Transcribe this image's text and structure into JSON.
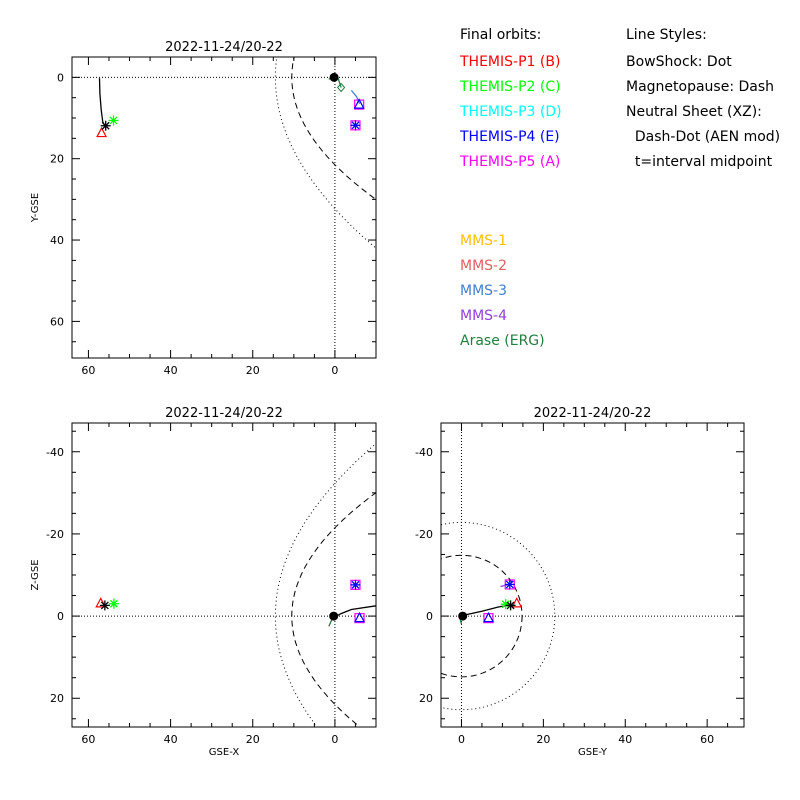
{
  "legend": {
    "final_orbits_title": "Final orbits:",
    "line_styles_title": "Line Styles:",
    "probes": [
      {
        "label": "THEMIS-P1 (B)",
        "color": "#ff0000"
      },
      {
        "label": "THEMIS-P2 (C)",
        "color": "#00ff00"
      },
      {
        "label": "THEMIS-P3 (D)",
        "color": "#00ffff"
      },
      {
        "label": "THEMIS-P4 (E)",
        "color": "#0000ff"
      },
      {
        "label": "THEMIS-P5 (A)",
        "color": "#ff00ff"
      }
    ],
    "mms": [
      {
        "label": "MMS-1",
        "color": "#ffc000"
      },
      {
        "label": "MMS-2",
        "color": "#e06060"
      },
      {
        "label": "MMS-3",
        "color": "#4080d0"
      },
      {
        "label": "MMS-4",
        "color": "#9040e0"
      },
      {
        "label": "Arase (ERG)",
        "color": "#208040"
      }
    ],
    "line_styles": [
      "BowShock: Dot",
      "Magnetopause: Dash",
      "Neutral Sheet (XZ):",
      "  Dash-Dot (AEN mod)",
      "  t=interval midpoint"
    ]
  },
  "chart_data": [
    {
      "type": "scatter",
      "title": "2022-11-24/20-22",
      "xlabel": "",
      "ylabel": "Y-GSE",
      "xlim": [
        64,
        -10
      ],
      "ylim": [
        -5,
        69
      ],
      "xticks": [
        60,
        40,
        20,
        0
      ],
      "yticks": [
        0,
        20,
        40,
        60
      ],
      "bowshock": {
        "kind": "xy",
        "x0": 14.5,
        "r": 36
      },
      "magnetopause": {
        "kind": "xy",
        "x0": 10.5,
        "r": 22
      },
      "markers": [
        {
          "x": 56.8,
          "y": 13.7,
          "symbol": "triangle",
          "color": "#ff0000"
        },
        {
          "x": 53.9,
          "y": 10.6,
          "symbol": "asterisk",
          "color": "#00ff00"
        },
        {
          "x": 55.8,
          "y": 11.9,
          "symbol": "asterisk",
          "color": "#000000"
        },
        {
          "x": -5.9,
          "y": 6.7,
          "symbol": "square",
          "color": "#ff00ff"
        },
        {
          "x": -5.9,
          "y": 6.7,
          "symbol": "triangle",
          "color": "#0000ff"
        },
        {
          "x": -5.0,
          "y": 11.8,
          "symbol": "square",
          "color": "#ff00ff"
        },
        {
          "x": -5.0,
          "y": 11.8,
          "symbol": "asterisk",
          "color": "#0000ff"
        },
        {
          "x": -1.5,
          "y": 2.5,
          "symbol": "diamond",
          "color": "#208040"
        },
        {
          "x": 0.2,
          "y": 0.0,
          "symbol": "circle",
          "color": "#000000"
        }
      ],
      "tracks": [
        {
          "color": "#000000",
          "points": [
            [
              57.3,
              0.2
            ],
            [
              57.2,
              4
            ],
            [
              56.9,
              8
            ],
            [
              56.5,
              11
            ],
            [
              55.8,
              12.3
            ]
          ]
        },
        {
          "color": "#4080d0",
          "points": [
            [
              -4.0,
              3.2
            ],
            [
              -5.3,
              4.8
            ],
            [
              -6.0,
              6.5
            ]
          ]
        },
        {
          "color": "#208040",
          "points": [
            [
              1.5,
              0.5
            ],
            [
              0.5,
              -0.3
            ],
            [
              -0.8,
              0.3
            ],
            [
              -1.5,
              2.5
            ]
          ]
        }
      ]
    },
    {
      "type": "scatter",
      "title": "2022-11-24/20-22",
      "xlabel": "GSE-X",
      "ylabel": "Z-GSE",
      "xlim": [
        64,
        -10
      ],
      "ylim": [
        -47,
        27
      ],
      "xticks": [
        60,
        40,
        20,
        0
      ],
      "yticks": [
        20,
        0,
        -20,
        -40
      ],
      "bowshock": {
        "kind": "xy",
        "x0": 14.5,
        "r": 36
      },
      "magnetopause": {
        "kind": "xy",
        "x0": 10.5,
        "r": 22
      },
      "markers": [
        {
          "x": 57.0,
          "y": -3.1,
          "symbol": "triangle",
          "color": "#ff0000"
        },
        {
          "x": 53.8,
          "y": -3.0,
          "symbol": "asterisk",
          "color": "#00ff00"
        },
        {
          "x": 56.0,
          "y": -2.6,
          "symbol": "asterisk",
          "color": "#000000"
        },
        {
          "x": -6.0,
          "y": 0.5,
          "symbol": "square",
          "color": "#ff00ff"
        },
        {
          "x": -6.0,
          "y": 0.5,
          "symbol": "triangle",
          "color": "#0000ff"
        },
        {
          "x": -5.0,
          "y": -7.6,
          "symbol": "square",
          "color": "#ff00ff"
        },
        {
          "x": -5.0,
          "y": -7.6,
          "symbol": "asterisk",
          "color": "#0000ff"
        },
        {
          "x": 0.3,
          "y": 0.0,
          "symbol": "circle",
          "color": "#000000"
        }
      ],
      "tracks": [
        {
          "color": "#000000",
          "points": [
            [
              0.5,
              0.5
            ],
            [
              -1.5,
              -0.6
            ],
            [
              -4,
              -1.6
            ],
            [
              -10,
              -2.5
            ]
          ]
        },
        {
          "color": "#208040",
          "points": [
            [
              1.5,
              2.5
            ],
            [
              0.8,
              1.0
            ],
            [
              0.2,
              0.0
            ]
          ]
        }
      ]
    },
    {
      "type": "scatter",
      "title": "2022-11-24/20-22",
      "xlabel": "GSE-Y",
      "ylabel": "",
      "xlim": [
        -5,
        69
      ],
      "ylim": [
        -47,
        27
      ],
      "xticks": [
        0,
        20,
        40,
        60
      ],
      "yticks": [
        20,
        0,
        -20,
        -40
      ],
      "bowshock": {
        "kind": "yz",
        "r": 22.8
      },
      "magnetopause": {
        "kind": "yz",
        "r": 14.8
      },
      "markers": [
        {
          "x": 13.5,
          "y": -3.1,
          "symbol": "triangle",
          "color": "#ff0000"
        },
        {
          "x": 10.8,
          "y": -2.9,
          "symbol": "asterisk",
          "color": "#00ff00"
        },
        {
          "x": 12.0,
          "y": -2.6,
          "symbol": "asterisk",
          "color": "#000000"
        },
        {
          "x": 6.6,
          "y": 0.5,
          "symbol": "square",
          "color": "#ff00ff"
        },
        {
          "x": 6.6,
          "y": 0.5,
          "symbol": "triangle",
          "color": "#0000ff"
        },
        {
          "x": 11.8,
          "y": -7.7,
          "symbol": "square",
          "color": "#ff00ff"
        },
        {
          "x": 11.8,
          "y": -7.7,
          "symbol": "asterisk",
          "color": "#0000ff"
        },
        {
          "x": 0.3,
          "y": 0.0,
          "symbol": "circle",
          "color": "#000000"
        }
      ],
      "tracks": [
        {
          "color": "#000000",
          "points": [
            [
              0.5,
              -0.2
            ],
            [
              5,
              -1.2
            ],
            [
              9,
              -2.2
            ],
            [
              12.5,
              -2.8
            ]
          ]
        },
        {
          "color": "#9040e0",
          "points": [
            [
              9.5,
              -7.2
            ],
            [
              11.8,
              -7.7
            ]
          ]
        },
        {
          "color": "#208040",
          "points": [
            [
              0.0,
              2.0
            ],
            [
              -0.3,
              0.8
            ],
            [
              0.3,
              0.0
            ]
          ]
        }
      ]
    }
  ]
}
